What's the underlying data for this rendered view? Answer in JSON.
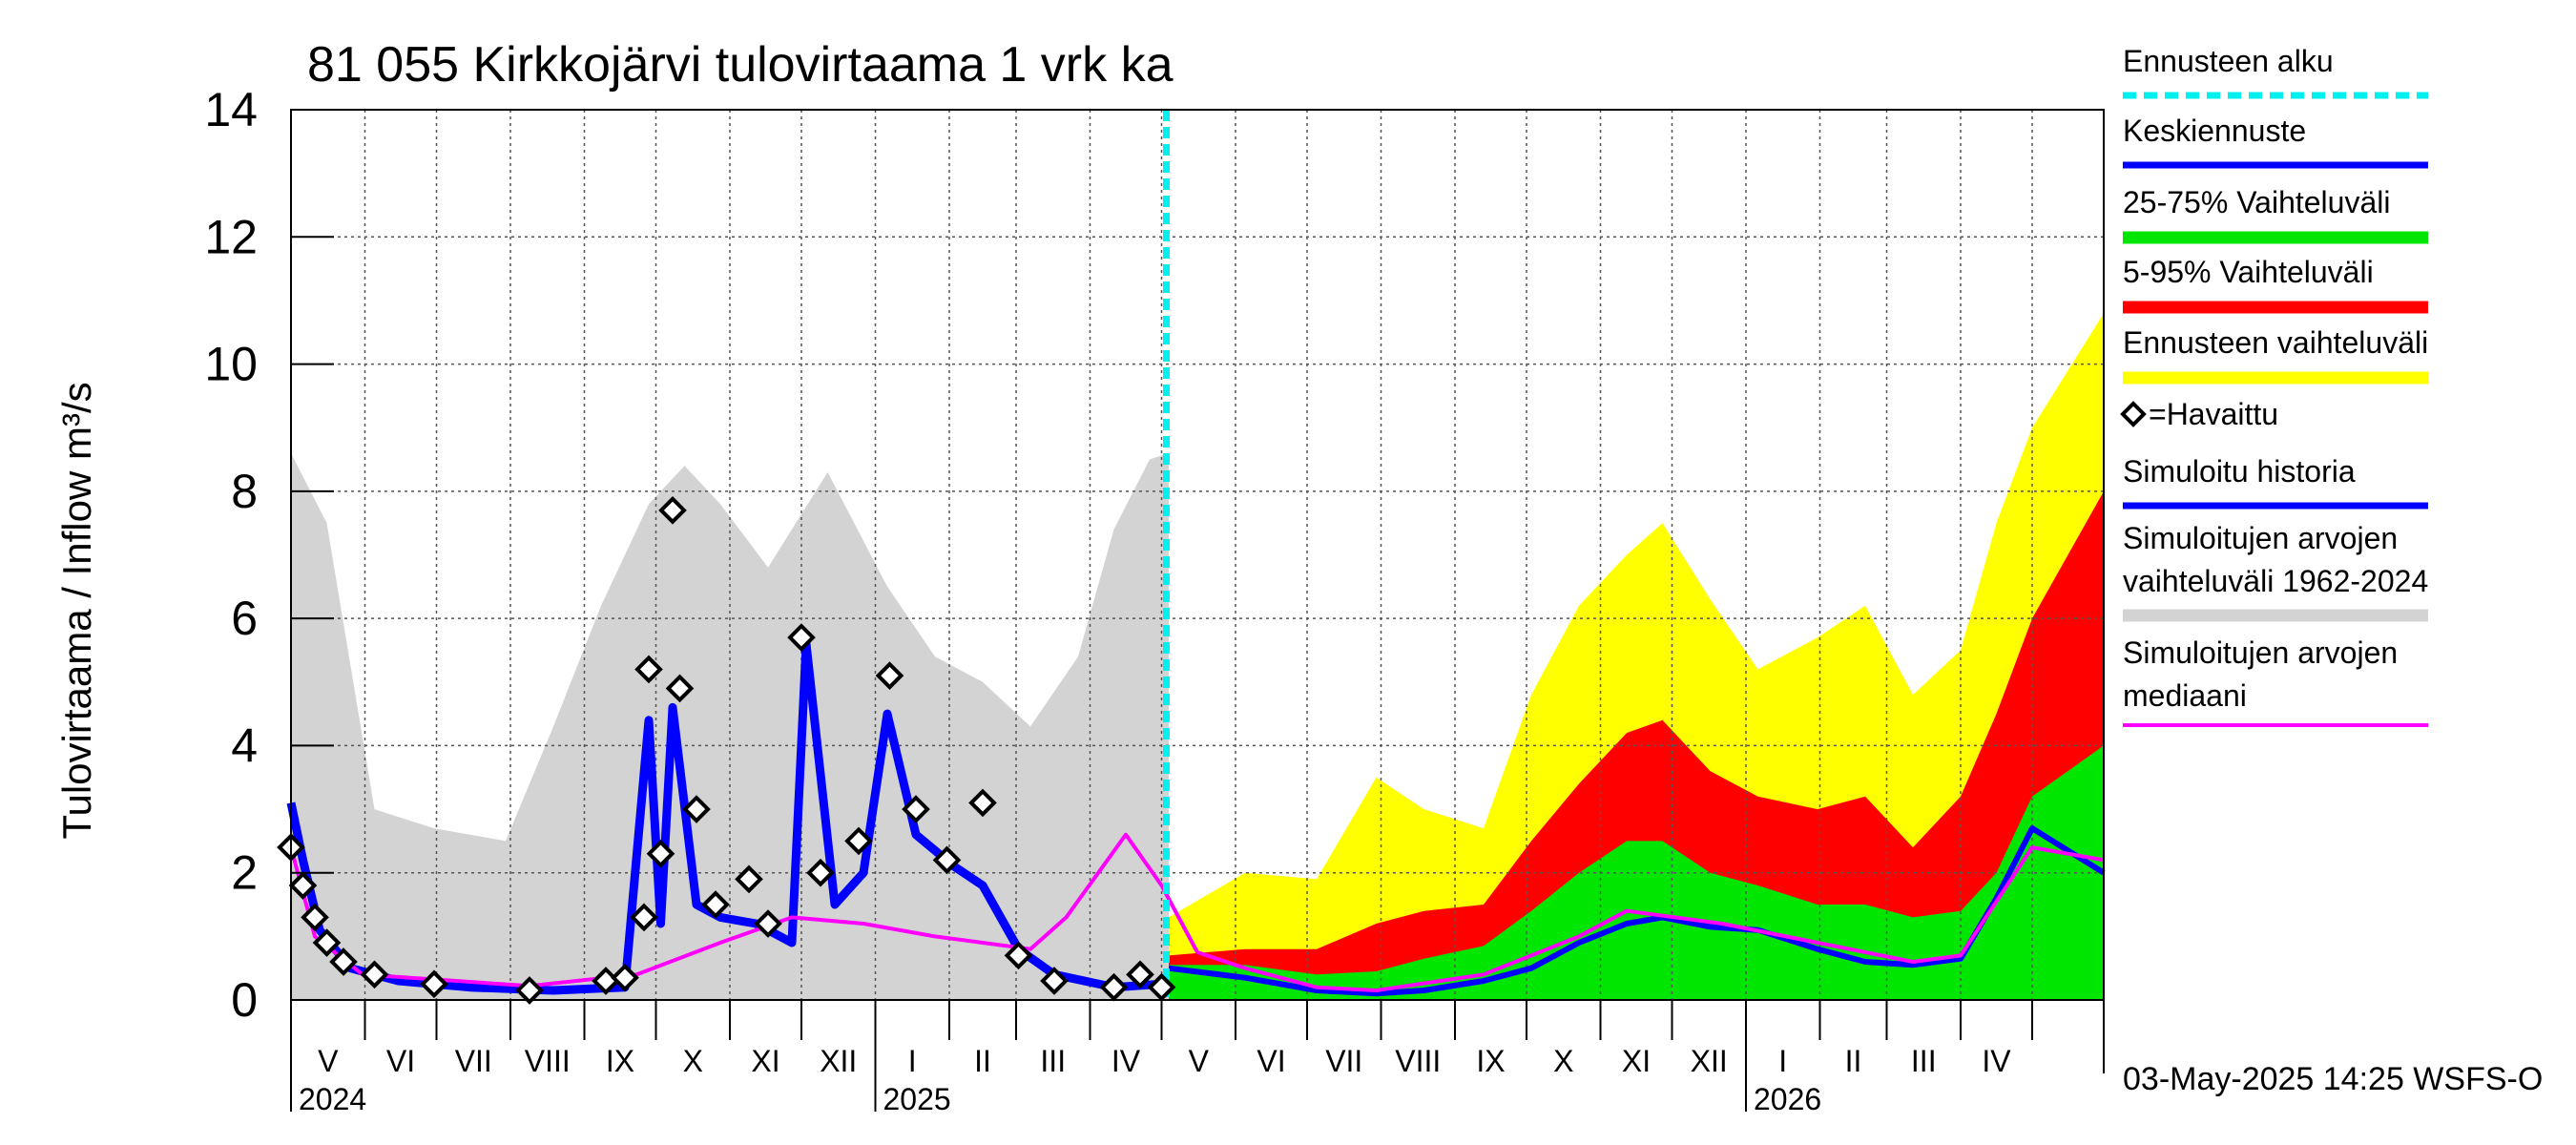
{
  "colors": {
    "forecast_start": "#00f0f0",
    "mean_forecast": "#0000ff",
    "p25_75": "#00e600",
    "p5_95": "#ff0000",
    "forecast_range": "#ffff00",
    "observed": "#000000",
    "sim_history": "#0000ff",
    "sim_range": "#d3d3d3",
    "median": "#ff00ff"
  },
  "chart_data": {
    "type": "line",
    "title": "81 055 Kirkkojärvi tulovirtaama 1 vrk ka",
    "ylabel": "Tulovirtaama / Inflow    m³/s",
    "ylim": [
      0,
      14
    ],
    "yticks": [
      0,
      2,
      4,
      6,
      8,
      10,
      12,
      14
    ],
    "xlim": [
      "2024-05-01",
      "2026-05-31"
    ],
    "grid": true,
    "forecast_start": "2025-05-03",
    "month_labels": [
      "V",
      "VI",
      "VII",
      "VIII",
      "IX",
      "X",
      "XI",
      "XII",
      "I",
      "II",
      "III",
      "IV",
      "V",
      "VI",
      "VII",
      "VIII",
      "IX",
      "X",
      "XI",
      "XII",
      "I",
      "II",
      "III",
      "IV"
    ],
    "year_labels": [
      "2024",
      "2025",
      "2026"
    ],
    "footer": "03-May-2025 14:25 WSFS-O",
    "legend": [
      {
        "label": "Ennusteen alku",
        "key": "forecast_start",
        "style": "dashed"
      },
      {
        "label": "Keskiennuste",
        "key": "mean_forecast",
        "style": "line"
      },
      {
        "label": "25-75% Vaihteluväli",
        "key": "p25_75",
        "style": "band"
      },
      {
        "label": "5-95% Vaihteluväli",
        "key": "p5_95",
        "style": "band"
      },
      {
        "label": "Ennusteen vaihteluväli",
        "key": "forecast_range",
        "style": "band"
      },
      {
        "label": "=Havaittu",
        "key": "observed",
        "style": "marker"
      },
      {
        "label": "Simuloitu historia",
        "key": "sim_history",
        "style": "line"
      },
      {
        "label": "Simuloitujen arvojen",
        "label2": "vaihteluväli 1962-2024",
        "key": "sim_range",
        "style": "band"
      },
      {
        "label": "Simuloitujen arvojen",
        "label2": "mediaani",
        "key": "median",
        "style": "line"
      }
    ],
    "sim_range_upper": [
      {
        "x": 0,
        "y": 8.6
      },
      {
        "x": 15,
        "y": 7.5
      },
      {
        "x": 35,
        "y": 3.0
      },
      {
        "x": 60,
        "y": 2.7
      },
      {
        "x": 90,
        "y": 2.5
      },
      {
        "x": 110,
        "y": 4.3
      },
      {
        "x": 130,
        "y": 6.2
      },
      {
        "x": 150,
        "y": 7.8
      },
      {
        "x": 165,
        "y": 8.4
      },
      {
        "x": 180,
        "y": 7.8
      },
      {
        "x": 200,
        "y": 6.8
      },
      {
        "x": 225,
        "y": 8.3
      },
      {
        "x": 250,
        "y": 6.5
      },
      {
        "x": 270,
        "y": 5.4
      },
      {
        "x": 290,
        "y": 5.0
      },
      {
        "x": 310,
        "y": 4.3
      },
      {
        "x": 330,
        "y": 5.4
      },
      {
        "x": 345,
        "y": 7.4
      },
      {
        "x": 360,
        "y": 8.5
      },
      {
        "x": 368,
        "y": 8.6
      }
    ],
    "forecast_range_upper": [
      {
        "x": 368,
        "y": 1.3
      },
      {
        "x": 400,
        "y": 2.0
      },
      {
        "x": 430,
        "y": 1.9
      },
      {
        "x": 455,
        "y": 3.5
      },
      {
        "x": 475,
        "y": 3.0
      },
      {
        "x": 500,
        "y": 2.7
      },
      {
        "x": 520,
        "y": 4.8
      },
      {
        "x": 540,
        "y": 6.2
      },
      {
        "x": 560,
        "y": 7.0
      },
      {
        "x": 575,
        "y": 7.5
      },
      {
        "x": 595,
        "y": 6.3
      },
      {
        "x": 615,
        "y": 5.2
      },
      {
        "x": 640,
        "y": 5.7
      },
      {
        "x": 660,
        "y": 6.2
      },
      {
        "x": 680,
        "y": 4.8
      },
      {
        "x": 700,
        "y": 5.5
      },
      {
        "x": 715,
        "y": 7.5
      },
      {
        "x": 730,
        "y": 9.0
      },
      {
        "x": 760,
        "y": 10.8
      }
    ],
    "p5_95_upper": [
      {
        "x": 368,
        "y": 0.7
      },
      {
        "x": 400,
        "y": 0.8
      },
      {
        "x": 430,
        "y": 0.8
      },
      {
        "x": 455,
        "y": 1.2
      },
      {
        "x": 475,
        "y": 1.4
      },
      {
        "x": 500,
        "y": 1.5
      },
      {
        "x": 520,
        "y": 2.5
      },
      {
        "x": 540,
        "y": 3.4
      },
      {
        "x": 560,
        "y": 4.2
      },
      {
        "x": 575,
        "y": 4.4
      },
      {
        "x": 595,
        "y": 3.6
      },
      {
        "x": 615,
        "y": 3.2
      },
      {
        "x": 640,
        "y": 3.0
      },
      {
        "x": 660,
        "y": 3.2
      },
      {
        "x": 680,
        "y": 2.4
      },
      {
        "x": 700,
        "y": 3.2
      },
      {
        "x": 715,
        "y": 4.5
      },
      {
        "x": 730,
        "y": 6.0
      },
      {
        "x": 760,
        "y": 8.0
      }
    ],
    "p25_75_upper": [
      {
        "x": 368,
        "y": 0.55
      },
      {
        "x": 400,
        "y": 0.55
      },
      {
        "x": 430,
        "y": 0.4
      },
      {
        "x": 455,
        "y": 0.45
      },
      {
        "x": 475,
        "y": 0.65
      },
      {
        "x": 500,
        "y": 0.85
      },
      {
        "x": 520,
        "y": 1.4
      },
      {
        "x": 540,
        "y": 2.0
      },
      {
        "x": 560,
        "y": 2.5
      },
      {
        "x": 575,
        "y": 2.5
      },
      {
        "x": 595,
        "y": 2.0
      },
      {
        "x": 615,
        "y": 1.8
      },
      {
        "x": 640,
        "y": 1.5
      },
      {
        "x": 660,
        "y": 1.5
      },
      {
        "x": 680,
        "y": 1.3
      },
      {
        "x": 700,
        "y": 1.4
      },
      {
        "x": 715,
        "y": 2.0
      },
      {
        "x": 730,
        "y": 3.2
      },
      {
        "x": 760,
        "y": 4.0
      }
    ],
    "mean_forecast": [
      {
        "x": 368,
        "y": 0.5
      },
      {
        "x": 400,
        "y": 0.35
      },
      {
        "x": 430,
        "y": 0.15
      },
      {
        "x": 455,
        "y": 0.1
      },
      {
        "x": 475,
        "y": 0.15
      },
      {
        "x": 500,
        "y": 0.3
      },
      {
        "x": 520,
        "y": 0.5
      },
      {
        "x": 540,
        "y": 0.9
      },
      {
        "x": 560,
        "y": 1.2
      },
      {
        "x": 575,
        "y": 1.3
      },
      {
        "x": 595,
        "y": 1.15
      },
      {
        "x": 615,
        "y": 1.1
      },
      {
        "x": 640,
        "y": 0.8
      },
      {
        "x": 660,
        "y": 0.6
      },
      {
        "x": 680,
        "y": 0.55
      },
      {
        "x": 700,
        "y": 0.65
      },
      {
        "x": 715,
        "y": 1.6
      },
      {
        "x": 730,
        "y": 2.7
      },
      {
        "x": 760,
        "y": 2.0
      }
    ],
    "sim_history": [
      {
        "x": 0,
        "y": 3.1
      },
      {
        "x": 5,
        "y": 2.2
      },
      {
        "x": 12,
        "y": 1.1
      },
      {
        "x": 25,
        "y": 0.5
      },
      {
        "x": 45,
        "y": 0.3
      },
      {
        "x": 75,
        "y": 0.2
      },
      {
        "x": 110,
        "y": 0.15
      },
      {
        "x": 140,
        "y": 0.2
      },
      {
        "x": 150,
        "y": 4.4
      },
      {
        "x": 155,
        "y": 1.2
      },
      {
        "x": 160,
        "y": 4.6
      },
      {
        "x": 170,
        "y": 1.5
      },
      {
        "x": 180,
        "y": 1.3
      },
      {
        "x": 195,
        "y": 1.2
      },
      {
        "x": 210,
        "y": 0.9
      },
      {
        "x": 216,
        "y": 5.6
      },
      {
        "x": 228,
        "y": 1.5
      },
      {
        "x": 240,
        "y": 2.0
      },
      {
        "x": 250,
        "y": 4.5
      },
      {
        "x": 262,
        "y": 2.6
      },
      {
        "x": 278,
        "y": 2.1
      },
      {
        "x": 290,
        "y": 1.8
      },
      {
        "x": 305,
        "y": 0.8
      },
      {
        "x": 320,
        "y": 0.4
      },
      {
        "x": 345,
        "y": 0.2
      },
      {
        "x": 365,
        "y": 0.25
      }
    ],
    "observed": [
      {
        "x": 0,
        "y": 2.4
      },
      {
        "x": 5,
        "y": 1.8
      },
      {
        "x": 10,
        "y": 1.3
      },
      {
        "x": 15,
        "y": 0.9
      },
      {
        "x": 22,
        "y": 0.6
      },
      {
        "x": 35,
        "y": 0.4
      },
      {
        "x": 60,
        "y": 0.25
      },
      {
        "x": 100,
        "y": 0.15
      },
      {
        "x": 132,
        "y": 0.3
      },
      {
        "x": 140,
        "y": 0.35
      },
      {
        "x": 148,
        "y": 1.3
      },
      {
        "x": 150,
        "y": 5.2
      },
      {
        "x": 155,
        "y": 2.3
      },
      {
        "x": 160,
        "y": 7.7
      },
      {
        "x": 163,
        "y": 4.9
      },
      {
        "x": 170,
        "y": 3.0
      },
      {
        "x": 178,
        "y": 1.5
      },
      {
        "x": 192,
        "y": 1.9
      },
      {
        "x": 200,
        "y": 1.2
      },
      {
        "x": 214,
        "y": 5.7
      },
      {
        "x": 222,
        "y": 2.0
      },
      {
        "x": 238,
        "y": 2.5
      },
      {
        "x": 251,
        "y": 5.1
      },
      {
        "x": 262,
        "y": 3.0
      },
      {
        "x": 275,
        "y": 2.2
      },
      {
        "x": 290,
        "y": 3.1
      },
      {
        "x": 305,
        "y": 0.7
      },
      {
        "x": 320,
        "y": 0.3
      },
      {
        "x": 345,
        "y": 0.2
      },
      {
        "x": 356,
        "y": 0.4
      },
      {
        "x": 365,
        "y": 0.2
      }
    ],
    "median": [
      {
        "x": 0,
        "y": 2.4
      },
      {
        "x": 10,
        "y": 1.0
      },
      {
        "x": 30,
        "y": 0.4
      },
      {
        "x": 100,
        "y": 0.22
      },
      {
        "x": 145,
        "y": 0.4
      },
      {
        "x": 180,
        "y": 0.9
      },
      {
        "x": 210,
        "y": 1.3
      },
      {
        "x": 240,
        "y": 1.2
      },
      {
        "x": 270,
        "y": 1.0
      },
      {
        "x": 290,
        "y": 0.9
      },
      {
        "x": 310,
        "y": 0.8
      },
      {
        "x": 325,
        "y": 1.3
      },
      {
        "x": 350,
        "y": 2.6
      },
      {
        "x": 365,
        "y": 1.8
      },
      {
        "x": 380,
        "y": 0.75
      },
      {
        "x": 400,
        "y": 0.5
      },
      {
        "x": 430,
        "y": 0.2
      },
      {
        "x": 455,
        "y": 0.15
      },
      {
        "x": 500,
        "y": 0.4
      },
      {
        "x": 540,
        "y": 1.0
      },
      {
        "x": 560,
        "y": 1.4
      },
      {
        "x": 600,
        "y": 1.2
      },
      {
        "x": 640,
        "y": 0.9
      },
      {
        "x": 680,
        "y": 0.6
      },
      {
        "x": 700,
        "y": 0.7
      },
      {
        "x": 730,
        "y": 2.4
      },
      {
        "x": 760,
        "y": 2.2
      }
    ]
  }
}
